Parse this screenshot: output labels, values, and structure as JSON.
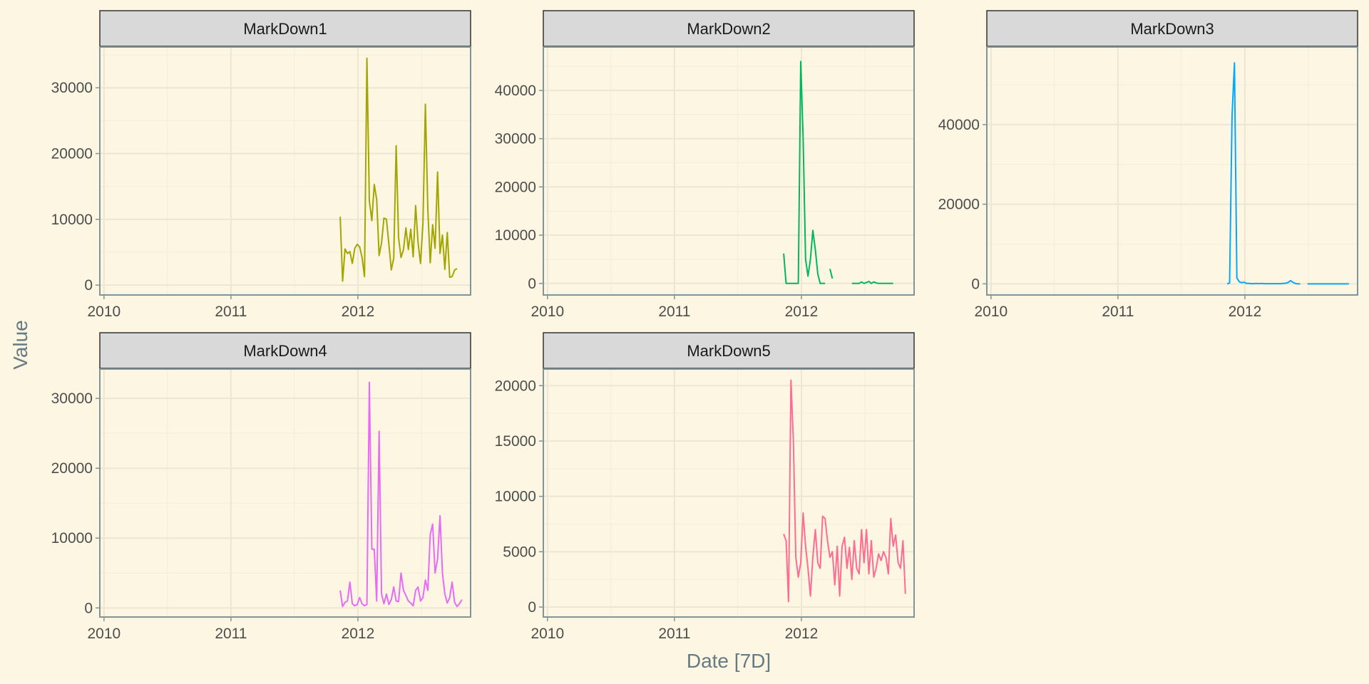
{
  "chart_data": {
    "type": "line",
    "layout": "facet-grid",
    "xlabel": "Date [7D]",
    "ylabel": "Value",
    "xlim": [
      "2009-12-20",
      "2012-11-20"
    ],
    "x_ticks": [
      {
        "value": "2010-01-01",
        "label": "2010"
      },
      {
        "value": "2011-01-01",
        "label": "2011"
      },
      {
        "value": "2012-01-01",
        "label": "2012"
      }
    ],
    "grid": true,
    "legend": "none",
    "colors": {
      "background": "#fdf6e3",
      "panel_border": "#839496",
      "strip_fill": "#d9d9d9",
      "strip_border": "#333333",
      "grid_major": "#ede6d4",
      "grid_minor": "#f4ecda"
    },
    "facets": [
      {
        "title": "MarkDown1",
        "color": "#a3a500",
        "ylim": [
          -1500,
          36200
        ],
        "y_ticks": [
          0,
          10000,
          20000,
          30000
        ],
        "x": [
          "2011-11-11",
          "2011-11-18",
          "2011-11-25",
          "2011-12-02",
          "2011-12-09",
          "2011-12-16",
          "2011-12-23",
          "2011-12-30",
          "2012-01-06",
          "2012-01-13",
          "2012-01-20",
          "2012-01-27",
          "2012-02-03",
          "2012-02-10",
          "2012-02-17",
          "2012-02-24",
          "2012-03-02",
          "2012-03-09",
          "2012-03-16",
          "2012-03-23",
          "2012-03-30",
          "2012-04-06",
          "2012-04-13",
          "2012-04-20",
          "2012-04-27",
          "2012-05-04",
          "2012-05-11",
          "2012-05-18",
          "2012-05-25",
          "2012-06-01",
          "2012-06-08",
          "2012-06-15",
          "2012-06-22",
          "2012-06-29",
          "2012-07-06",
          "2012-07-13",
          "2012-07-20",
          "2012-07-27",
          "2012-08-03",
          "2012-08-10",
          "2012-08-17",
          "2012-08-24",
          "2012-08-31",
          "2012-09-07",
          "2012-09-14",
          "2012-09-21",
          "2012-09-28",
          "2012-10-05",
          "2012-10-12",
          "2012-10-19",
          "2012-10-26"
        ],
        "values": [
          10400,
          600,
          5500,
          4800,
          5100,
          3300,
          5600,
          6200,
          5800,
          4200,
          1300,
          34500,
          12800,
          9800,
          15300,
          13000,
          4500,
          6400,
          10200,
          10000,
          6200,
          2300,
          4100,
          21200,
          7200,
          4200,
          5400,
          8700,
          5400,
          8500,
          4300,
          12100,
          6500,
          3300,
          9500,
          27500,
          11500,
          3400,
          9200,
          5600,
          17200,
          4800,
          7600,
          2400,
          8000,
          1200,
          1300,
          2300,
          2500,
          null,
          null
        ]
      },
      {
        "title": "MarkDown2",
        "color": "#00b85c",
        "ylim": [
          -2400,
          49000
        ],
        "y_ticks": [
          0,
          10000,
          20000,
          30000,
          40000
        ],
        "x": [
          "2011-11-11",
          "2011-11-18",
          "2011-11-25",
          "2011-12-02",
          "2011-12-09",
          "2011-12-16",
          "2011-12-23",
          "2011-12-30",
          "2012-01-06",
          "2012-01-13",
          "2012-01-20",
          "2012-01-27",
          "2012-02-03",
          "2012-02-10",
          "2012-02-17",
          "2012-02-24",
          "2012-03-02",
          "2012-03-09",
          "2012-03-16",
          "2012-03-23",
          "2012-03-30",
          "2012-04-06",
          "2012-04-13",
          "2012-04-20",
          "2012-04-27",
          "2012-05-04",
          "2012-05-11",
          "2012-05-18",
          "2012-05-25",
          "2012-06-01",
          "2012-06-08",
          "2012-06-15",
          "2012-06-22",
          "2012-06-29",
          "2012-07-06",
          "2012-07-13",
          "2012-07-20",
          "2012-07-27",
          "2012-08-03",
          "2012-08-10",
          "2012-08-17",
          "2012-08-24",
          "2012-08-31",
          "2012-09-07",
          "2012-09-14",
          "2012-09-21"
        ],
        "values": [
          6200,
          0,
          0,
          0,
          0,
          0,
          0,
          46000,
          30000,
          5000,
          1500,
          5000,
          11000,
          7000,
          2000,
          0,
          0,
          0,
          null,
          3000,
          1000,
          null,
          null,
          null,
          null,
          null,
          null,
          null,
          0,
          0,
          0,
          0,
          300,
          0,
          200,
          400,
          0,
          300,
          100,
          0,
          0,
          0,
          0,
          0,
          0,
          0
        ]
      },
      {
        "title": "MarkDown3",
        "color": "#00a9ff",
        "ylim": [
          -2800,
          59500
        ],
        "y_ticks": [
          0,
          20000,
          40000
        ],
        "x": [
          "2011-11-11",
          "2011-11-18",
          "2011-11-25",
          "2011-12-02",
          "2011-12-09",
          "2011-12-16",
          "2011-12-23",
          "2011-12-30",
          "2012-01-06",
          "2012-01-13",
          "2012-01-20",
          "2012-01-27",
          "2012-02-03",
          "2012-02-10",
          "2012-02-17",
          "2012-02-24",
          "2012-03-02",
          "2012-03-09",
          "2012-03-16",
          "2012-03-23",
          "2012-03-30",
          "2012-04-06",
          "2012-04-13",
          "2012-04-20",
          "2012-04-27",
          "2012-05-04",
          "2012-05-11",
          "2012-05-18",
          "2012-05-25",
          "2012-06-01",
          "2012-06-08",
          "2012-06-15",
          "2012-06-22",
          "2012-06-29",
          "2012-07-06",
          "2012-07-13",
          "2012-07-20",
          "2012-07-27",
          "2012-08-03",
          "2012-08-10",
          "2012-08-17",
          "2012-08-24",
          "2012-08-31",
          "2012-09-07",
          "2012-09-14",
          "2012-09-21",
          "2012-09-28",
          "2012-10-05",
          "2012-10-12",
          "2012-10-19",
          "2012-10-26"
        ],
        "values": [
          0,
          200,
          42000,
          55500,
          1500,
          500,
          300,
          400,
          100,
          100,
          50,
          50,
          100,
          50,
          100,
          50,
          50,
          50,
          50,
          50,
          50,
          50,
          50,
          100,
          150,
          300,
          800,
          400,
          100,
          0,
          0,
          null,
          null,
          0,
          0,
          0,
          0,
          0,
          0,
          0,
          0,
          0,
          0,
          0,
          0,
          0,
          0,
          0,
          0,
          0,
          0
        ]
      },
      {
        "title": "MarkDown4",
        "color": "#e76bf3",
        "ylim": [
          -1300,
          34200
        ],
        "y_ticks": [
          0,
          10000,
          20000,
          30000
        ],
        "x": [
          "2011-11-11",
          "2011-11-18",
          "2011-11-25",
          "2011-12-02",
          "2011-12-09",
          "2011-12-16",
          "2011-12-23",
          "2011-12-30",
          "2012-01-06",
          "2012-01-13",
          "2012-01-20",
          "2012-01-27",
          "2012-02-03",
          "2012-02-10",
          "2012-02-17",
          "2012-02-24",
          "2012-03-02",
          "2012-03-09",
          "2012-03-16",
          "2012-03-23",
          "2012-03-30",
          "2012-04-06",
          "2012-04-13",
          "2012-04-20",
          "2012-04-27",
          "2012-05-04",
          "2012-05-11",
          "2012-05-18",
          "2012-05-25",
          "2012-06-01",
          "2012-06-08",
          "2012-06-15",
          "2012-06-22",
          "2012-06-29",
          "2012-07-06",
          "2012-07-13",
          "2012-07-20",
          "2012-07-27",
          "2012-08-03",
          "2012-08-10",
          "2012-08-17",
          "2012-08-24",
          "2012-08-31",
          "2012-09-07",
          "2012-09-14",
          "2012-09-21",
          "2012-09-28",
          "2012-10-05",
          "2012-10-12",
          "2012-10-19",
          "2012-10-26"
        ],
        "values": [
          2500,
          200,
          800,
          1000,
          3700,
          600,
          300,
          500,
          1500,
          600,
          300,
          500,
          32300,
          8400,
          8400,
          1000,
          25300,
          2000,
          600,
          2000,
          500,
          1200,
          3000,
          1000,
          900,
          5000,
          2500,
          1800,
          1000,
          700,
          300,
          2500,
          3000,
          1000,
          1500,
          4000,
          2500,
          10500,
          12000,
          5000,
          7000,
          13200,
          5000,
          2000,
          700,
          1500,
          3700,
          800,
          200,
          600,
          1200
        ]
      },
      {
        "title": "MarkDown5",
        "color": "#ff6c91",
        "ylim": [
          -900,
          21500
        ],
        "y_ticks": [
          0,
          5000,
          10000,
          15000,
          20000
        ],
        "x": [
          "2011-11-11",
          "2011-11-18",
          "2011-11-25",
          "2011-12-02",
          "2011-12-09",
          "2011-12-16",
          "2011-12-23",
          "2011-12-30",
          "2012-01-06",
          "2012-01-13",
          "2012-01-20",
          "2012-01-27",
          "2012-02-03",
          "2012-02-10",
          "2012-02-17",
          "2012-02-24",
          "2012-03-02",
          "2012-03-09",
          "2012-03-16",
          "2012-03-23",
          "2012-03-30",
          "2012-04-06",
          "2012-04-13",
          "2012-04-20",
          "2012-04-27",
          "2012-05-04",
          "2012-05-11",
          "2012-05-18",
          "2012-05-25",
          "2012-06-01",
          "2012-06-08",
          "2012-06-15",
          "2012-06-22",
          "2012-06-29",
          "2012-07-06",
          "2012-07-13",
          "2012-07-20",
          "2012-07-27",
          "2012-08-03",
          "2012-08-10",
          "2012-08-17",
          "2012-08-24",
          "2012-08-31",
          "2012-09-07",
          "2012-09-14",
          "2012-09-21",
          "2012-09-28",
          "2012-10-05",
          "2012-10-12",
          "2012-10-19",
          "2012-10-26"
        ],
        "values": [
          6600,
          6000,
          500,
          20500,
          15000,
          4500,
          2700,
          4000,
          8500,
          5500,
          3500,
          1000,
          4500,
          7000,
          4000,
          3500,
          8200,
          8000,
          6000,
          4500,
          5000,
          2000,
          5500,
          1000,
          5500,
          6300,
          3500,
          5400,
          2500,
          6000,
          3500,
          3000,
          7000,
          4000,
          7000,
          3000,
          6000,
          2700,
          3500,
          4800,
          4200,
          5000,
          4500,
          3000,
          8000,
          5500,
          6500,
          4000,
          3500,
          6000,
          1200
        ]
      }
    ]
  }
}
